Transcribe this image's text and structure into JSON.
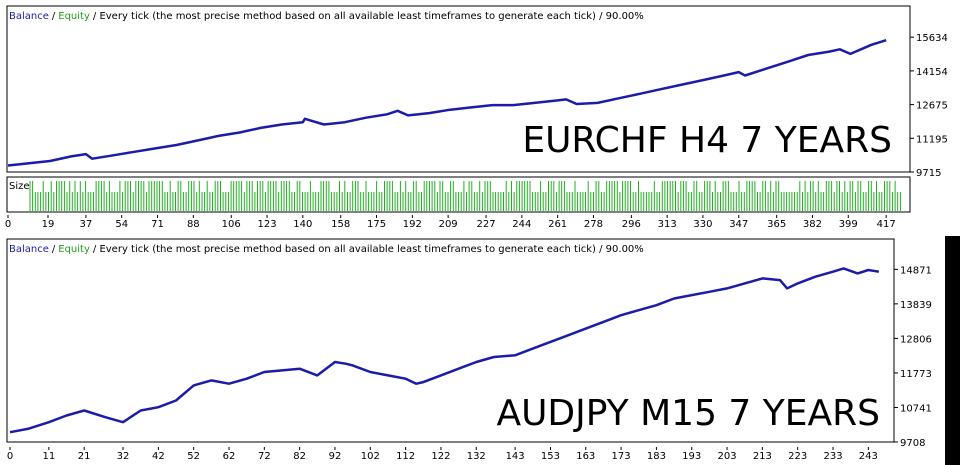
{
  "colors": {
    "balance": "#1c1ca8",
    "equity": "#1e9e1e",
    "size_bars": "#22b022",
    "text": "#000000",
    "frame": "#000000",
    "background": "#ffffff",
    "right_edge_block": "#000000"
  },
  "chart_data": [
    {
      "type": "line",
      "header": {
        "balance": "Balance",
        "sep1": "/",
        "equity": "Equity",
        "rest": "/ Every tick (the most precise method based on all available least timeframes to generate each tick) / 90.00%"
      },
      "overlay_label": "EURCHF H4 7 YEARS",
      "subpanel_label": "Size",
      "ylim": [
        9715,
        16300
      ],
      "y_ticks": [
        "15634",
        "14154",
        "12675",
        "11195",
        "9715"
      ],
      "xlim": [
        0,
        425
      ],
      "x_ticks": [
        "0",
        "19",
        "37",
        "54",
        "71",
        "88",
        "106",
        "123",
        "140",
        "158",
        "175",
        "192",
        "209",
        "227",
        "244",
        "261",
        "278",
        "296",
        "313",
        "330",
        "347",
        "365",
        "382",
        "399",
        "417"
      ],
      "series": [
        {
          "x": [
            0,
            10,
            20,
            30,
            37,
            40,
            50,
            60,
            70,
            80,
            90,
            100,
            110,
            120,
            130,
            140,
            141,
            150,
            160,
            170,
            180,
            185,
            190,
            200,
            210,
            220,
            230,
            240,
            250,
            260,
            265,
            270,
            280,
            290,
            300,
            310,
            320,
            330,
            340,
            347,
            350,
            360,
            370,
            380,
            390,
            395,
            400,
            410,
            417
          ],
          "values": [
            10000,
            10100,
            10200,
            10400,
            10500,
            10300,
            10450,
            10600,
            10750,
            10900,
            11100,
            11300,
            11450,
            11650,
            11800,
            11900,
            12050,
            11800,
            11900,
            12100,
            12250,
            12400,
            12200,
            12300,
            12450,
            12550,
            12650,
            12650,
            12750,
            12850,
            12900,
            12700,
            12750,
            12950,
            13150,
            13350,
            13550,
            13750,
            13950,
            14100,
            13950,
            14250,
            14550,
            14850,
            15000,
            15100,
            14900,
            15300,
            15500
          ]
        }
      ]
    },
    {
      "type": "line",
      "header": {
        "balance": "Balance",
        "sep1": "/",
        "equity": "Equity",
        "rest": "/ Every tick (the most precise method based on all available least timeframes to generate each tick) / 90.00%"
      },
      "overlay_label": "AUDJPY M15 7 YEARS",
      "ylim": [
        9708,
        15300
      ],
      "y_ticks": [
        "14871",
        "13839",
        "12806",
        "11773",
        "10741",
        "9708"
      ],
      "xlim": [
        0,
        248
      ],
      "x_ticks": [
        "0",
        "11",
        "21",
        "32",
        "42",
        "52",
        "62",
        "72",
        "82",
        "92",
        "102",
        "112",
        "122",
        "132",
        "143",
        "153",
        "163",
        "173",
        "183",
        "193",
        "203",
        "213",
        "223",
        "233",
        "243"
      ],
      "series": [
        {
          "x": [
            0,
            5,
            11,
            16,
            21,
            27,
            32,
            37,
            42,
            47,
            52,
            57,
            62,
            67,
            72,
            77,
            82,
            87,
            92,
            95,
            97,
            102,
            107,
            112,
            115,
            117,
            122,
            127,
            132,
            137,
            143,
            148,
            153,
            158,
            163,
            168,
            173,
            178,
            183,
            188,
            193,
            198,
            203,
            208,
            213,
            218,
            220,
            223,
            228,
            233,
            236,
            240,
            243,
            246
          ],
          "values": [
            10000,
            10100,
            10300,
            10500,
            10650,
            10450,
            10300,
            10650,
            10750,
            10950,
            11400,
            11550,
            11450,
            11600,
            11800,
            11850,
            11900,
            11700,
            12100,
            12050,
            12000,
            11800,
            11700,
            11600,
            11450,
            11500,
            11700,
            11900,
            12100,
            12250,
            12300,
            12500,
            12700,
            12900,
            13100,
            13300,
            13500,
            13650,
            13800,
            14000,
            14100,
            14200,
            14300,
            14450,
            14600,
            14550,
            14300,
            14450,
            14650,
            14800,
            14900,
            14750,
            14850,
            14800
          ]
        }
      ]
    }
  ]
}
